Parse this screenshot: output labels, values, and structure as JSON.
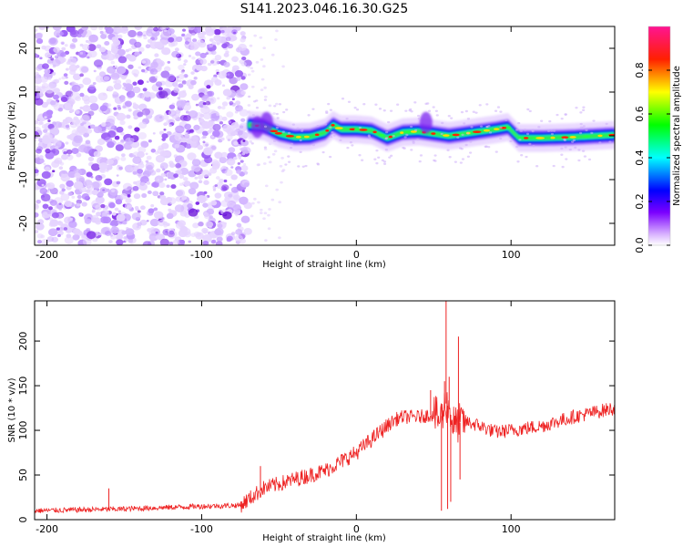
{
  "title": "S141.2023.046.16.30.G25",
  "chart_data": [
    {
      "type": "heatmap",
      "xlabel": "Height of straight line (km)",
      "ylabel": "Frequency (Hz)",
      "xlim": [
        -208,
        167
      ],
      "ylim": [
        -25,
        25
      ],
      "x_ticks": [
        -200,
        -100,
        0,
        100
      ],
      "y_ticks": [
        -20,
        -10,
        0,
        10,
        20
      ],
      "noise_region_x": [
        -208,
        -70
      ],
      "signal_region_x": [
        -70,
        167
      ],
      "signal_frequency_track": [
        {
          "x": -70,
          "y": 2.5
        },
        {
          "x": -60,
          "y": 2.2
        },
        {
          "x": -50,
          "y": 0.5
        },
        {
          "x": -40,
          "y": -0.3
        },
        {
          "x": -30,
          "y": -0.2
        },
        {
          "x": -20,
          "y": 0.8
        },
        {
          "x": -15,
          "y": 2.5
        },
        {
          "x": -10,
          "y": 1.5
        },
        {
          "x": 0,
          "y": 1.5
        },
        {
          "x": 10,
          "y": 1.2
        },
        {
          "x": 20,
          "y": -0.5
        },
        {
          "x": 30,
          "y": 0.8
        },
        {
          "x": 40,
          "y": 1.0
        },
        {
          "x": 50,
          "y": 0.5
        },
        {
          "x": 60,
          "y": 0.0
        },
        {
          "x": 70,
          "y": 0.5
        },
        {
          "x": 80,
          "y": 1.0
        },
        {
          "x": 90,
          "y": 1.5
        },
        {
          "x": 98,
          "y": 2.0
        },
        {
          "x": 105,
          "y": -0.5
        },
        {
          "x": 120,
          "y": -0.5
        },
        {
          "x": 140,
          "y": -0.3
        },
        {
          "x": 167,
          "y": 0.2
        }
      ],
      "colorbar": {
        "label": "Normalized spectral amplitude",
        "range": [
          0.0,
          1.0
        ],
        "ticks": [
          0.0,
          0.2,
          0.4,
          0.6,
          0.8
        ],
        "colors": [
          "#ffffff",
          "#7b00ff",
          "#0000ff",
          "#00ffff",
          "#00ff00",
          "#ffff00",
          "#ff0000",
          "#ff1493"
        ]
      },
      "grid": false
    },
    {
      "type": "line",
      "xlabel": "Height of straight line (km)",
      "ylabel": "SNR (10 * v/v)",
      "xlim": [
        -208,
        167
      ],
      "ylim": [
        0,
        245
      ],
      "x_ticks": [
        -200,
        -100,
        0,
        100
      ],
      "y_ticks": [
        0,
        50,
        100,
        150,
        200
      ],
      "color": "#ee2222",
      "trend": {
        "x": [
          -208,
          -150,
          -100,
          -75,
          -60,
          -40,
          -20,
          0,
          10,
          20,
          25,
          30,
          40,
          50,
          54,
          56,
          58,
          60,
          62,
          64,
          66,
          70,
          80,
          90,
          100,
          120,
          140,
          167
        ],
        "y": [
          10,
          12,
          15,
          16,
          35,
          45,
          55,
          75,
          90,
          105,
          112,
          115,
          115,
          118,
          112,
          120,
          130,
          125,
          110,
          105,
          108,
          110,
          105,
          98,
          100,
          105,
          115,
          125
        ]
      },
      "spikes": [
        {
          "x": -160,
          "y": 35
        },
        {
          "x": -62,
          "y": 60
        },
        {
          "x": 48,
          "y": 145
        },
        {
          "x": 55,
          "y": 10
        },
        {
          "x": 57,
          "y": 155
        },
        {
          "x": 58,
          "y": 245
        },
        {
          "x": 59,
          "y": 12
        },
        {
          "x": 60,
          "y": 160
        },
        {
          "x": 61,
          "y": 20
        },
        {
          "x": 66,
          "y": 205
        },
        {
          "x": 67,
          "y": 45
        }
      ],
      "grid": false
    }
  ]
}
